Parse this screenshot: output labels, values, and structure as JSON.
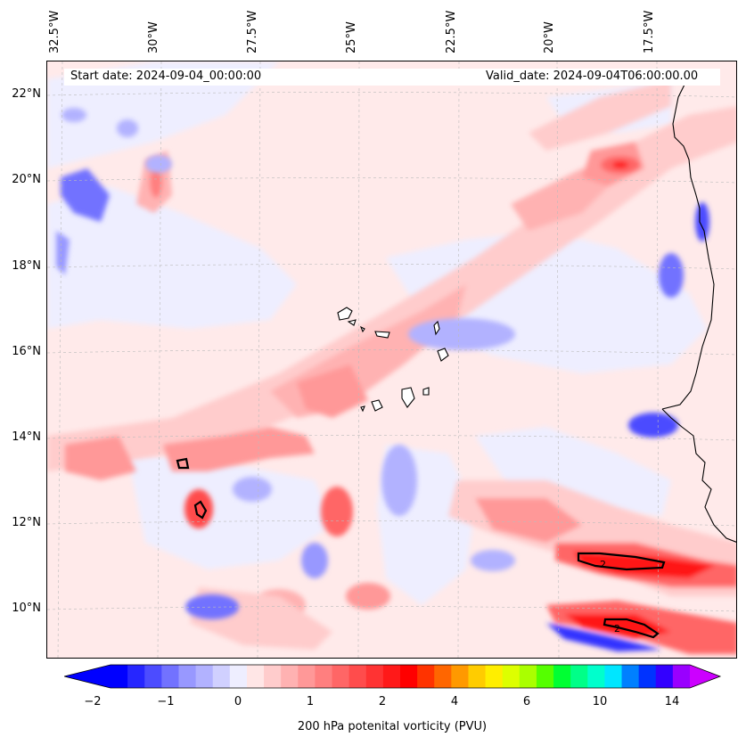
{
  "map": {
    "start_date": "Start date: 2024-09-04_00:00:00",
    "valid_date": "Valid_date: 2024-09-04T06:00:00.00",
    "longitude_labels": [
      "32.5°W",
      "30°W",
      "27.5°W",
      "25°W",
      "22.5°W",
      "20°W",
      "17.5°W"
    ],
    "latitude_labels": [
      "22°N",
      "20°N",
      "18°N",
      "16°N",
      "14°N",
      "12°N",
      "10°N"
    ],
    "contour_labels": [
      "2",
      "2"
    ]
  },
  "colorbar": {
    "title": "200 hPa potenital vorticity (PVU)",
    "tick_labels": [
      "−2",
      "−1",
      "0",
      "1",
      "2",
      "4",
      "6",
      "10",
      "14"
    ],
    "colors": [
      "#0000ff",
      "#2626ff",
      "#4c4cff",
      "#7272ff",
      "#9898ff",
      "#b2b2ff",
      "#d0d0ff",
      "#eeeeff",
      "#ffe6e6",
      "#ffcccc",
      "#ffb2b2",
      "#ff9898",
      "#ff7f7f",
      "#ff6666",
      "#ff4c4c",
      "#ff3333",
      "#ff1919",
      "#ff0000",
      "#ff3300",
      "#ff6600",
      "#ff9900",
      "#ffcc00",
      "#ffee00",
      "#ddff00",
      "#aaff00",
      "#55ff00",
      "#00ff33",
      "#00ff88",
      "#00ffcc",
      "#00e6ff",
      "#0080ff",
      "#0033ff",
      "#3300ff",
      "#9900ff"
    ],
    "extend_low_color": "#0000ff",
    "extend_high_color": "#cc00ff"
  }
}
